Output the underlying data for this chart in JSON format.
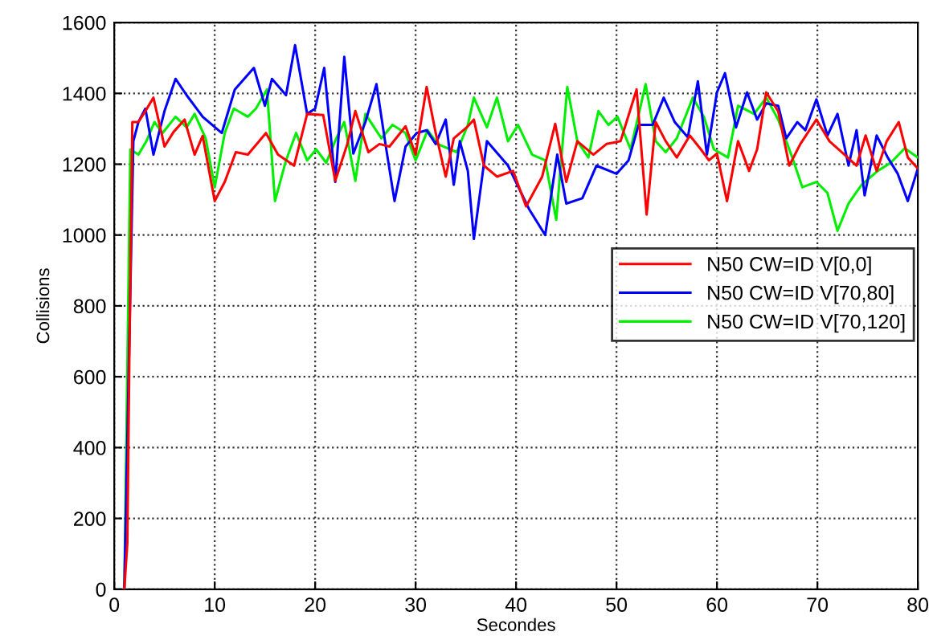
{
  "chart_data": {
    "type": "line",
    "xlabel": "Secondes",
    "ylabel": "Collisions",
    "xlim": [
      0,
      80
    ],
    "xticks": [
      0,
      10,
      20,
      30,
      40,
      50,
      60,
      70,
      80
    ],
    "ylim": [
      0,
      1600
    ],
    "yticks": [
      0,
      200,
      400,
      600,
      800,
      1000,
      1200,
      1400,
      1600
    ],
    "grid": true,
    "legend": "right",
    "line_style": "solid",
    "series": [
      {
        "name": "N50 CW=ID V[0,0]",
        "color": "#ff0000",
        "x": [
          1,
          1.3,
          1.5,
          1.8,
          2.4,
          3.1,
          3.9,
          5,
          5.9,
          7,
          8,
          8.8,
          10,
          11,
          12.1,
          13.3,
          15.1,
          16.3,
          17.9,
          19.2,
          20.8,
          22,
          23.2,
          24,
          25.3,
          26.4,
          27.4,
          29,
          30,
          31.1,
          32,
          33,
          33.8,
          35.2,
          35.8,
          36.8,
          38.1,
          39.7,
          41,
          42.6,
          43.9,
          45,
          46.1,
          47.7,
          49,
          50.4,
          52,
          53,
          53.9,
          54.9,
          56,
          57.3,
          58.4,
          59.2,
          60,
          61,
          62.1,
          63.2,
          64,
          64.9,
          66.1,
          67.2,
          68.3,
          69.9,
          71.2,
          72.7,
          73.9,
          74.8,
          75.9,
          76.9,
          78.1,
          79,
          80
        ],
        "values": [
          0,
          130,
          650,
          1319,
          1319,
          1350,
          1388,
          1250,
          1291,
          1326,
          1227,
          1280,
          1096,
          1150,
          1234,
          1227,
          1288,
          1227,
          1196,
          1342,
          1339,
          1153,
          1257,
          1350,
          1234,
          1257,
          1250,
          1307,
          1227,
          1418,
          1288,
          1165,
          1273,
          1307,
          1326,
          1196,
          1165,
          1181,
          1081,
          1165,
          1314,
          1150,
          1265,
          1227,
          1257,
          1265,
          1411,
          1058,
          1319,
          1265,
          1219,
          1281,
          1242,
          1211,
          1230,
          1096,
          1265,
          1181,
          1242,
          1403,
          1349,
          1196,
          1257,
          1326,
          1265,
          1227,
          1196,
          1281,
          1181,
          1265,
          1319,
          1219,
          1188
        ]
      },
      {
        "name": "N50 CW=ID V[70,80]",
        "color": "#0000ff",
        "x": [
          1,
          1.9,
          2.4,
          3.1,
          3.9,
          5,
          6.1,
          7.2,
          8.8,
          10.7,
          12,
          13.9,
          15,
          15.7,
          17.1,
          18,
          19.2,
          20,
          20.9,
          22,
          22.9,
          23.8,
          25,
          26.1,
          27,
          27.9,
          29,
          30.1,
          31.1,
          32,
          33,
          33.8,
          34.4,
          35.2,
          35.8,
          37.1,
          39.2,
          41.3,
          42.9,
          44.1,
          45,
          46.6,
          48,
          50,
          51.2,
          52.2,
          53.6,
          54.7,
          55.8,
          57.1,
          58.1,
          59,
          60,
          60.8,
          61.9,
          63,
          64,
          64.9,
          66.1,
          66.9,
          68,
          68.8,
          69.9,
          71,
          72,
          73.1,
          73.9,
          74.7,
          75.9,
          77,
          78,
          79,
          80
        ],
        "values": [
          0,
          1265,
          1319,
          1357,
          1227,
          1350,
          1441,
          1395,
          1334,
          1288,
          1411,
          1472,
          1365,
          1441,
          1395,
          1536,
          1342,
          1357,
          1472,
          1150,
          1503,
          1230,
          1319,
          1426,
          1257,
          1096,
          1250,
          1288,
          1296,
          1257,
          1326,
          1142,
          1265,
          1181,
          989,
          1265,
          1196,
          1073,
          1000,
          1227,
          1089,
          1104,
          1196,
          1173,
          1211,
          1311,
          1311,
          1388,
          1319,
          1276,
          1434,
          1227,
          1403,
          1457,
          1304,
          1403,
          1326,
          1372,
          1365,
          1273,
          1319,
          1296,
          1383,
          1281,
          1342,
          1196,
          1296,
          1112,
          1281,
          1219,
          1173,
          1096,
          1188
        ]
      },
      {
        "name": "N50 CW=ID V[70,120]",
        "color": "#00ee00",
        "x": [
          1,
          1.6,
          2.4,
          3.2,
          4,
          4.8,
          6.1,
          7.2,
          8,
          9.1,
          10,
          11,
          11.9,
          13.3,
          14.1,
          15.2,
          16,
          17.1,
          18.1,
          19.2,
          20.1,
          21.1,
          22.1,
          22.9,
          24,
          25,
          26.6,
          27.7,
          29,
          30,
          31.2,
          32.2,
          34.1,
          35.2,
          35.8,
          37.1,
          38.1,
          39.2,
          40.2,
          41.6,
          42.9,
          44,
          45.1,
          46.1,
          47.2,
          48.2,
          49.2,
          50.1,
          51.4,
          52.9,
          53.9,
          54.9,
          56,
          57.6,
          58.7,
          59.7,
          61.1,
          62.1,
          63.7,
          64.9,
          66.1,
          67.5,
          68.5,
          69.9,
          71,
          72,
          73.1,
          74.4,
          76,
          77.3,
          78.7,
          80
        ],
        "values": [
          0,
          1242,
          1227,
          1265,
          1319,
          1288,
          1334,
          1304,
          1342,
          1273,
          1135,
          1288,
          1357,
          1334,
          1357,
          1411,
          1096,
          1211,
          1288,
          1211,
          1242,
          1204,
          1273,
          1319,
          1153,
          1342,
          1273,
          1311,
          1288,
          1211,
          1296,
          1257,
          1234,
          1311,
          1388,
          1304,
          1388,
          1265,
          1311,
          1227,
          1211,
          1043,
          1418,
          1265,
          1219,
          1350,
          1311,
          1334,
          1242,
          1426,
          1265,
          1234,
          1273,
          1388,
          1334,
          1242,
          1219,
          1365,
          1342,
          1388,
          1326,
          1219,
          1135,
          1150,
          1119,
          1012,
          1089,
          1142,
          1181,
          1204,
          1245,
          1219
        ]
      }
    ]
  }
}
